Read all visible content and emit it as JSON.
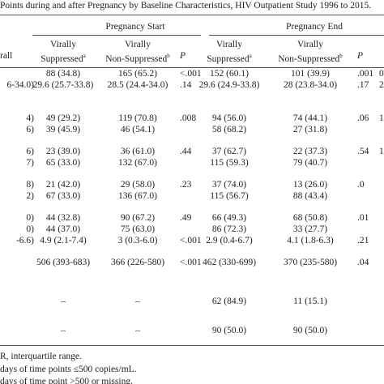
{
  "title": "Points during and after Pregnancy by Baseline Characteristics, HIV Outpatient Study 1996 to 2015.",
  "header": {
    "groups": [
      "Pregnancy Start",
      "Pregnancy End"
    ],
    "first_column": "rall",
    "columns": [
      {
        "line1": "Virally",
        "line2": "Suppressed",
        "sup": "a"
      },
      {
        "line1": "Virally",
        "line2": "Non-Suppressed",
        "sup": "b"
      },
      {
        "line2": "P"
      },
      {
        "line1": "Virally",
        "line2": "Suppressed",
        "sup": "a"
      },
      {
        "line1": "Virally",
        "line2": "Non-Suppressed",
        "sup": "b"
      },
      {
        "line2": "P"
      }
    ]
  },
  "table": {
    "rows": [
      [
        "",
        "88 (34.8)",
        "165 (65.2)",
        "<.001",
        "152 (60.1)",
        "101 (39.9)",
        ".001",
        "0"
      ],
      [
        "6-34.0)",
        "29.6 (25.7-33.8)",
        "28.5 (24.4-34.0)",
        ".14",
        "29.6 (24.9-33.8)",
        "28 (23.8-34.0)",
        ".17",
        "2"
      ],
      [
        "4)",
        "49 (29.2)",
        "119 (70.8)",
        ".008",
        "94 (56.0)",
        "74 (44.1)",
        ".06",
        "1"
      ],
      [
        "6)",
        "39 (45.9)",
        "46 (54.1)",
        "",
        "58 (68.2)",
        "27 (31.8)",
        "",
        ""
      ],
      [
        "6)",
        "23 (39.0)",
        "36 (61.0)",
        ".44",
        "37 (62.7)",
        "22 (37.3)",
        ".54",
        "1"
      ],
      [
        "7)",
        "65 (33.0)",
        "132 (67.0)",
        "",
        "115 (59.3)",
        "79 (40.7)",
        "",
        ""
      ],
      [
        "8)",
        "21 (42.0)",
        "29 (58.0)",
        ".23",
        "37 (74.0)",
        "13 (26.0)",
        ".0",
        ""
      ],
      [
        "2)",
        "67 (33.0)",
        "136 (67.0)",
        "",
        "115 (56.7)",
        "88 (43.4)",
        "",
        ""
      ],
      [
        "0)",
        "44 (32.8)",
        "90 (67.2)",
        ".49",
        "66 (49.3)",
        "68 (50.8)",
        ".01",
        ""
      ],
      [
        "0)",
        "44 (37.0)",
        "75 (63.0)",
        "",
        "86 (72.3)",
        "33 (27.7)",
        "",
        ""
      ],
      [
        "-6.6)",
        "4.9 (2.1-7.4)",
        "3 (0.3-6.0)",
        "<.001",
        "2.9 (0.4-6.7)",
        "4.1 (1.8-6.3)",
        ".21",
        ""
      ],
      [
        "",
        "506 (393-683)",
        "366 (226-580)",
        "<.001",
        "462 (330-699)",
        "370 (235-580)",
        ".04",
        ""
      ],
      [
        "",
        "–",
        "–",
        "",
        "62 (84.9)",
        "11 (15.1)",
        "",
        ""
      ],
      [
        "",
        "–",
        "–",
        "",
        "90 (50.0)",
        "90 (50.0)",
        "",
        ""
      ]
    ]
  },
  "footnotes": [
    "R, interquartile range.",
    "days of time points ≤500 copies/mL.",
    "days of time point >500 or missing."
  ]
}
